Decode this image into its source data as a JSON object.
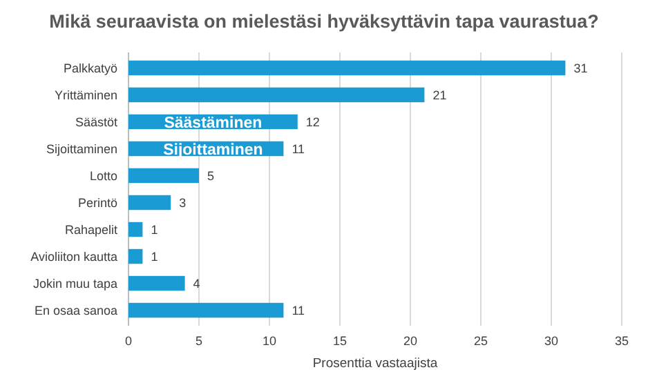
{
  "chart_data": {
    "type": "bar",
    "orientation": "horizontal",
    "title": "Mikä seuraavista on mielestäsi hyväksyttävin tapa vaurastua?",
    "xlabel": "Prosenttia vastaajista",
    "categories": [
      "Palkkatyö",
      "Yrittäminen",
      "Säästöt",
      "Sijoittaminen",
      "Lotto",
      "Perintö",
      "Rahapelit",
      "Avioliiton kautta",
      "Jokin muu tapa",
      "En osaa sanoa"
    ],
    "values": [
      31,
      21,
      12,
      11,
      5,
      3,
      1,
      1,
      4,
      11
    ],
    "color": "#1b9bd4",
    "xlim": [
      0,
      35
    ],
    "xticks": [
      0,
      5,
      10,
      15,
      20,
      25,
      30,
      35
    ],
    "grid": "x",
    "data_labels": true,
    "annotations": [
      {
        "text": "Säästäminen",
        "x": 6,
        "y": "Säästöt"
      },
      {
        "text": "Sijoittaminen",
        "x": 6,
        "y": "Sijoittaminen"
      }
    ]
  }
}
